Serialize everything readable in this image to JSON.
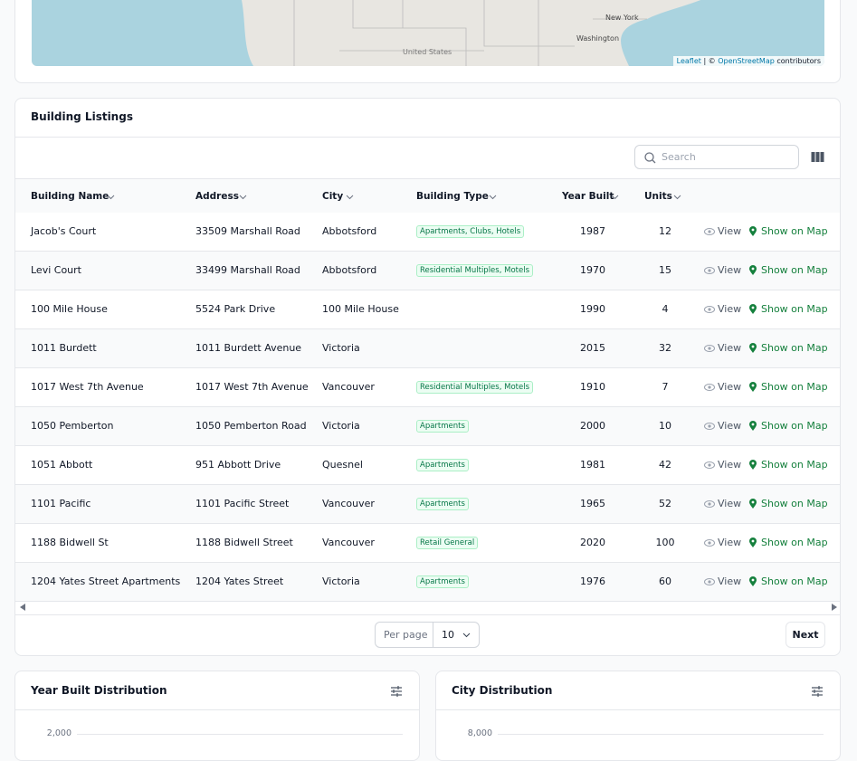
{
  "map": {
    "labels": [
      "New York",
      "Washington",
      "United States"
    ],
    "attribution": {
      "leaflet": "Leaflet",
      "separator": "| ©",
      "osm": "OpenStreetMap",
      "suffix": "contributors"
    }
  },
  "listings": {
    "title": "Building Listings",
    "search_placeholder": "Search",
    "columns": [
      "Building Name",
      "Address",
      "City",
      "Building Type",
      "Year Built",
      "Units"
    ],
    "actions": [
      "View",
      "Show on Map"
    ],
    "rows": [
      {
        "name": "Jacob's Court",
        "address": "33509 Marshall Road",
        "city": "Abbotsford",
        "type": "Apartments, Clubs, Hotels",
        "year": "1987",
        "units": "12"
      },
      {
        "name": "Levi Court",
        "address": "33499 Marshall Road",
        "city": "Abbotsford",
        "type": "Residential Multiples, Motels",
        "year": "1970",
        "units": "15"
      },
      {
        "name": "100 Mile House",
        "address": "5524 Park Drive",
        "city": "100 Mile House",
        "year": "1990",
        "units": "4"
      },
      {
        "name": "1011 Burdett",
        "address": "1011 Burdett Avenue",
        "city": "Victoria",
        "year": "2015",
        "units": "32"
      },
      {
        "name": "1017 West 7th Avenue",
        "address": "1017 West 7th Avenue",
        "city": "Vancouver",
        "type": "Residential Multiples, Motels",
        "year": "1910",
        "units": "7"
      },
      {
        "name": "1050 Pemberton",
        "address": "1050 Pemberton Road",
        "city": "Victoria",
        "type": "Apartments",
        "year": "2000",
        "units": "10"
      },
      {
        "name": "1051 Abbott",
        "address": "951 Abbott Drive",
        "city": "Quesnel",
        "type": "Apartments",
        "year": "1981",
        "units": "42"
      },
      {
        "name": "1101 Pacific",
        "address": "1101 Pacific Street",
        "city": "Vancouver",
        "type": "Apartments",
        "year": "1965",
        "units": "52"
      },
      {
        "name": "1188 Bidwell St",
        "address": "1188 Bidwell Street",
        "city": "Vancouver",
        "type": "Retail General",
        "year": "2020",
        "units": "100"
      },
      {
        "name": "1204 Yates Street Apartments",
        "address": "1204 Yates Street",
        "city": "Victoria",
        "type": "Apartments",
        "year": "1976",
        "units": "60"
      }
    ],
    "pagination": {
      "per_page_label": "Per page",
      "per_page": "10",
      "next": "Next"
    }
  },
  "charts": [
    {
      "title": "Year Built Distribution",
      "yticks": [
        {
          "value": 2000,
          "label": "2,000"
        }
      ]
    },
    {
      "title": "City Distribution",
      "yticks": [
        {
          "value": 8000,
          "label": "8,000"
        }
      ]
    }
  ]
}
